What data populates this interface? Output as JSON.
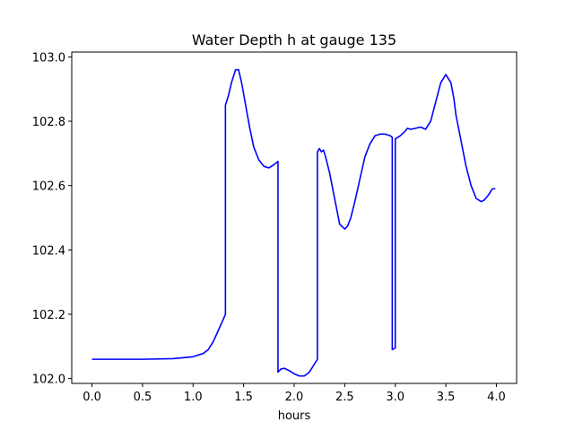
{
  "chart_data": {
    "type": "line",
    "title": "Water Depth h at gauge 135",
    "xlabel": "hours",
    "ylabel": "",
    "xlim": [
      -0.2,
      4.2
    ],
    "ylim": [
      101.985,
      103.015
    ],
    "xticks": [
      0.0,
      0.5,
      1.0,
      1.5,
      2.0,
      2.5,
      3.0,
      3.5,
      4.0
    ],
    "xtick_labels": [
      "0.0",
      "0.5",
      "1.0",
      "1.5",
      "2.0",
      "2.5",
      "3.0",
      "3.5",
      "4.0"
    ],
    "yticks": [
      102.0,
      102.2,
      102.4,
      102.6,
      102.8,
      103.0
    ],
    "ytick_labels": [
      "102.0",
      "102.2",
      "102.4",
      "102.6",
      "102.8",
      "103.0"
    ],
    "grid": false,
    "series": [
      {
        "color": "#0000ff",
        "x": [
          0.0,
          0.5,
          0.8,
          1.0,
          1.1,
          1.15,
          1.2,
          1.25,
          1.3,
          1.32,
          1.32,
          1.35,
          1.38,
          1.42,
          1.45,
          1.48,
          1.52,
          1.56,
          1.6,
          1.65,
          1.7,
          1.75,
          1.8,
          1.84,
          1.84,
          1.87,
          1.9,
          1.95,
          2.0,
          2.05,
          2.1,
          2.15,
          2.2,
          2.23,
          2.23,
          2.25,
          2.27,
          2.29,
          2.31,
          2.35,
          2.4,
          2.45,
          2.5,
          2.53,
          2.56,
          2.6,
          2.65,
          2.7,
          2.75,
          2.8,
          2.85,
          2.9,
          2.95,
          2.97,
          2.97,
          3.0,
          3.0,
          3.05,
          3.1,
          3.12,
          3.15,
          3.2,
          3.25,
          3.3,
          3.35,
          3.4,
          3.45,
          3.5,
          3.55,
          3.58,
          3.6,
          3.65,
          3.7,
          3.75,
          3.8,
          3.85,
          3.88,
          3.92,
          3.96,
          3.99
        ],
        "y": [
          102.06,
          102.06,
          102.062,
          102.068,
          102.078,
          102.09,
          102.115,
          102.15,
          102.185,
          102.2,
          102.85,
          102.88,
          102.92,
          102.96,
          102.96,
          102.92,
          102.85,
          102.78,
          102.72,
          102.68,
          102.66,
          102.655,
          102.665,
          102.675,
          102.02,
          102.03,
          102.032,
          102.025,
          102.015,
          102.008,
          102.008,
          102.02,
          102.045,
          102.06,
          102.705,
          102.715,
          102.705,
          102.71,
          102.69,
          102.64,
          102.56,
          102.48,
          102.465,
          102.475,
          102.5,
          102.55,
          102.62,
          102.69,
          102.73,
          102.755,
          102.76,
          102.76,
          102.755,
          102.75,
          102.09,
          102.095,
          102.745,
          102.755,
          102.77,
          102.778,
          102.775,
          102.778,
          102.782,
          102.775,
          102.8,
          102.86,
          102.92,
          102.945,
          102.92,
          102.87,
          102.82,
          102.74,
          102.66,
          102.6,
          102.56,
          102.55,
          102.555,
          102.57,
          102.59,
          102.59
        ]
      }
    ]
  }
}
